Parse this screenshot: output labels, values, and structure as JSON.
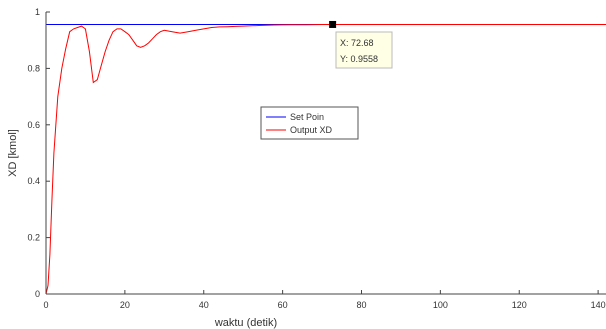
{
  "chart_data": {
    "type": "line",
    "xlabel": "waktu (detik)",
    "ylabel": "XD [kmol]",
    "xlim": [
      0,
      142
    ],
    "ylim": [
      0,
      1
    ],
    "xticks": [
      0,
      20,
      40,
      60,
      80,
      100,
      120,
      140
    ],
    "yticks": [
      0,
      0.2,
      0.4,
      0.6,
      0.8,
      1
    ],
    "ytick_labels": [
      "0",
      "0.2",
      "0.4",
      "0.6",
      "0.8",
      "1"
    ],
    "grid": false,
    "legend_position": "center",
    "series": [
      {
        "name": "Set Poin",
        "color": "#0000ff",
        "x": [
          0,
          142
        ],
        "y": [
          0.9558,
          0.9558
        ]
      },
      {
        "name": "Output XD",
        "color": "#ff0000",
        "x": [
          0,
          0.5,
          1,
          1.5,
          2,
          3,
          4,
          5,
          6,
          7,
          8,
          9,
          10,
          11,
          12,
          13,
          14,
          15,
          16,
          17,
          18,
          19,
          20,
          21,
          22,
          23,
          24,
          25,
          26,
          27,
          28,
          29,
          30,
          32,
          34,
          36,
          38,
          40,
          42,
          44,
          46,
          48,
          50,
          54,
          58,
          62,
          66,
          70,
          72.68,
          80,
          90,
          100,
          110,
          120,
          130,
          142
        ],
        "y": [
          0,
          0.03,
          0.14,
          0.33,
          0.5,
          0.7,
          0.8,
          0.87,
          0.93,
          0.94,
          0.945,
          0.95,
          0.94,
          0.86,
          0.75,
          0.76,
          0.81,
          0.86,
          0.9,
          0.93,
          0.94,
          0.94,
          0.93,
          0.92,
          0.9,
          0.88,
          0.875,
          0.88,
          0.89,
          0.905,
          0.92,
          0.93,
          0.935,
          0.93,
          0.925,
          0.93,
          0.935,
          0.94,
          0.945,
          0.947,
          0.948,
          0.949,
          0.95,
          0.952,
          0.954,
          0.955,
          0.955,
          0.9558,
          0.9558,
          0.9558,
          0.9558,
          0.9558,
          0.9558,
          0.9558,
          0.9558,
          0.9558
        ]
      }
    ],
    "datatip": {
      "x": 72.68,
      "y": 0.9558,
      "x_text": "X: 72.68",
      "y_text": "Y: 0.9558"
    }
  }
}
